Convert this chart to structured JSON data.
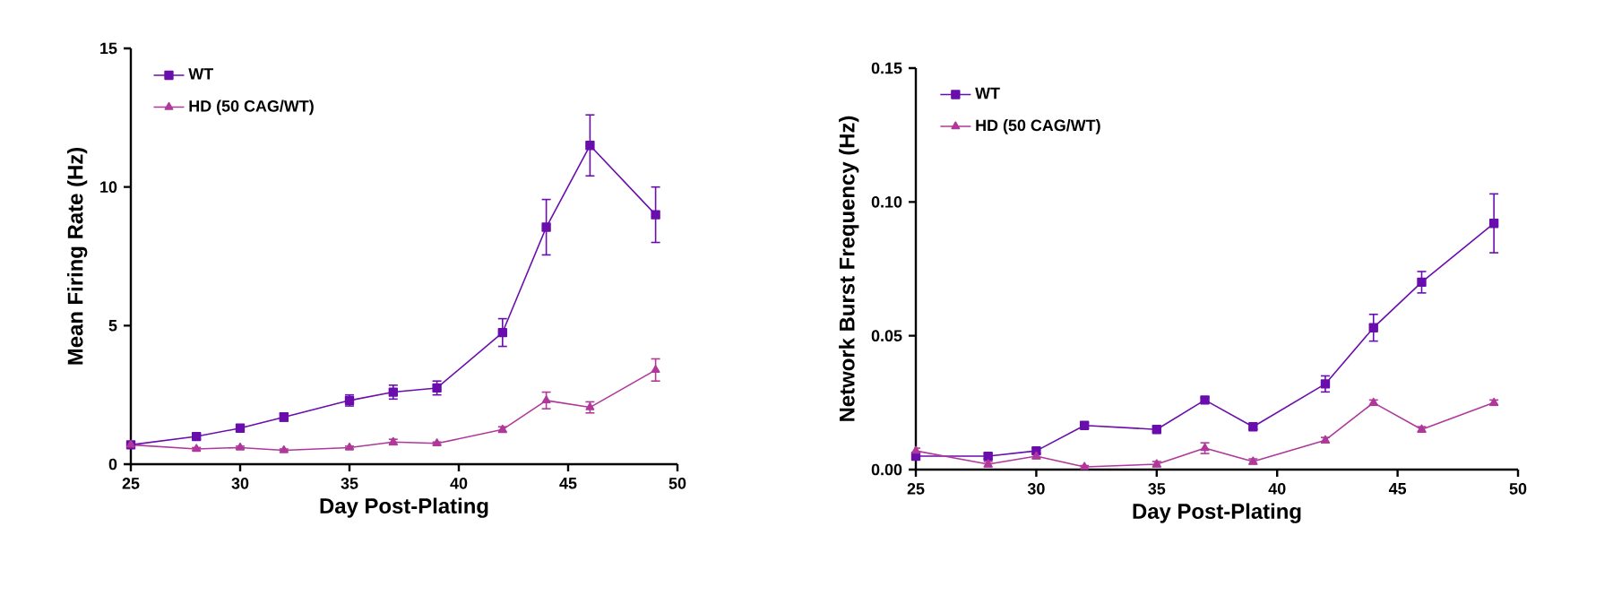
{
  "chart_data": [
    {
      "type": "line",
      "xlabel": "Day Post-Plating",
      "ylabel": "Mean Firing Rate (Hz)",
      "x": [
        25,
        28,
        30,
        32,
        35,
        37,
        39,
        42,
        44,
        46,
        49
      ],
      "xlim": [
        25,
        50
      ],
      "xticks": [
        25,
        30,
        35,
        40,
        45,
        50
      ],
      "ylim": [
        0,
        15
      ],
      "yticks": [
        0,
        5,
        10,
        15
      ],
      "legend": "top left",
      "grid": false,
      "series": [
        {
          "name": "WT",
          "color": "#6a0dad",
          "marker": "square",
          "values": [
            0.7,
            1.0,
            1.3,
            1.7,
            2.3,
            2.6,
            2.75,
            4.75,
            8.55,
            11.5,
            9.0
          ],
          "errors": [
            0.1,
            0.1,
            0.1,
            0.15,
            0.2,
            0.25,
            0.25,
            0.5,
            1.0,
            1.1,
            1.0
          ]
        },
        {
          "name": "HD (50 CAG/WT)",
          "color": "#b0389a",
          "marker": "triangle",
          "values": [
            0.7,
            0.55,
            0.6,
            0.5,
            0.6,
            0.8,
            0.75,
            1.25,
            2.3,
            2.05,
            3.4
          ],
          "errors": [
            0.05,
            0.05,
            0.05,
            0.05,
            0.05,
            0.1,
            0.05,
            0.1,
            0.3,
            0.2,
            0.4
          ]
        }
      ]
    },
    {
      "type": "line",
      "xlabel": "Day Post-Plating",
      "ylabel": "Network Burst Frequency (Hz)",
      "x": [
        25,
        28,
        30,
        32,
        35,
        37,
        39,
        42,
        44,
        46,
        49
      ],
      "xlim": [
        25,
        50
      ],
      "xticks": [
        25,
        30,
        35,
        40,
        45,
        50
      ],
      "ylim": [
        0,
        0.15
      ],
      "yticks": [
        {
          "value": 0,
          "label": "0.00"
        },
        {
          "value": 0.05,
          "label": "0.05"
        },
        {
          "value": 0.1,
          "label": "0.10"
        },
        {
          "value": 0.15,
          "label": "0.15"
        }
      ],
      "legend": "top left",
      "grid": false,
      "series": [
        {
          "name": "WT",
          "color": "#6a0dad",
          "marker": "square",
          "values": [
            0.005,
            0.005,
            0.007,
            0.0165,
            0.015,
            0.026,
            0.016,
            0.032,
            0.053,
            0.07,
            0.092
          ],
          "errors": [
            0.001,
            0.001,
            0.001,
            0.001,
            0.001,
            0.001,
            0.001,
            0.003,
            0.005,
            0.004,
            0.011
          ]
        },
        {
          "name": "HD (50 CAG/WT)",
          "color": "#b0389a",
          "marker": "triangle",
          "values": [
            0.007,
            0.002,
            0.005,
            0.001,
            0.002,
            0.008,
            0.003,
            0.011,
            0.025,
            0.015,
            0.025
          ],
          "errors": [
            0.001,
            0.001,
            0.001,
            0.0005,
            0.001,
            0.002,
            0.001,
            0.001,
            0.001,
            0.001,
            0.001
          ]
        }
      ]
    }
  ]
}
